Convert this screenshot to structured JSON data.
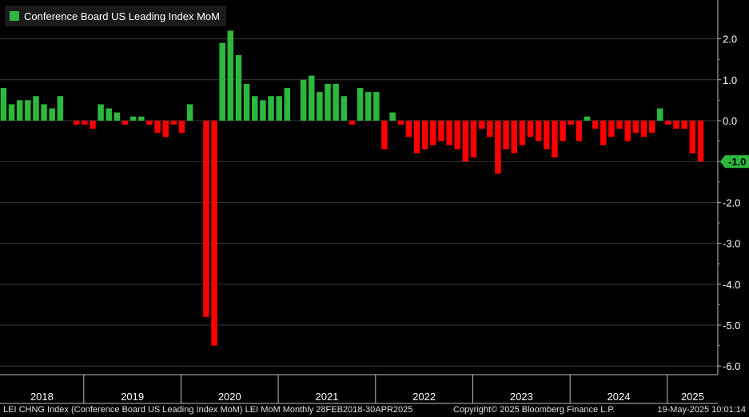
{
  "legend": {
    "label": "Conference Board US Leading Index MoM",
    "color": "#2db83d"
  },
  "footer": {
    "left": "LEI CHNG Index (Conference Board US Leading Index MoM) LEI MoM  Monthly 28FEB2018-30APR2025",
    "center": "Copyright© 2025 Bloomberg Finance L.P.",
    "right": "19-May-2025 10:01:14"
  },
  "colors": {
    "positive": "#2db83d",
    "negative": "#ff0000",
    "grid": "#3a3a3a",
    "background": "#000000",
    "tag": "#2db83d"
  },
  "latest_value_label": "-1.0",
  "chart_data": {
    "type": "bar",
    "title": "",
    "xlabel": "",
    "ylabel": "",
    "ylim": [
      -6.2,
      2.3
    ],
    "y_ticks": [
      2.0,
      1.0,
      0.0,
      -1.0,
      -2.0,
      -3.0,
      -4.0,
      -5.0,
      -6.0
    ],
    "y_tick_labels": [
      "2.0",
      "1.0",
      "0.0",
      "-1.0",
      "-2.0",
      "-3.0",
      "-4.0",
      "-5.0",
      "-6.0"
    ],
    "x_year_labels": [
      "2018",
      "2019",
      "2020",
      "2021",
      "2022",
      "2023",
      "2024",
      "2025"
    ],
    "series": [
      {
        "name": "Conference Board US Leading Index MoM",
        "start": "2018-02",
        "values": [
          0.8,
          0.4,
          0.5,
          0.5,
          0.6,
          0.4,
          0.3,
          0.6,
          0.0,
          -0.1,
          -0.1,
          -0.2,
          0.4,
          0.3,
          0.2,
          -0.1,
          0.1,
          0.1,
          -0.1,
          -0.3,
          -0.4,
          -0.1,
          -0.3,
          0.4,
          0.0,
          -4.8,
          -5.5,
          1.9,
          2.2,
          1.6,
          0.9,
          0.6,
          0.5,
          0.6,
          0.6,
          0.8,
          0.0,
          1.0,
          1.1,
          0.7,
          0.9,
          0.9,
          0.6,
          -0.1,
          0.8,
          0.7,
          0.7,
          -0.7,
          0.2,
          -0.1,
          -0.4,
          -0.8,
          -0.7,
          -0.6,
          -0.5,
          -0.6,
          -0.7,
          -1.0,
          -0.9,
          -0.2,
          -0.4,
          -1.3,
          -0.7,
          -0.8,
          -0.6,
          -0.4,
          -0.5,
          -0.7,
          -0.9,
          -0.5,
          -0.1,
          -0.5,
          0.1,
          -0.2,
          -0.6,
          -0.4,
          -0.2,
          -0.5,
          -0.3,
          -0.4,
          -0.3,
          0.3,
          -0.1,
          -0.2,
          -0.2,
          -0.8,
          -1.0
        ]
      }
    ]
  }
}
